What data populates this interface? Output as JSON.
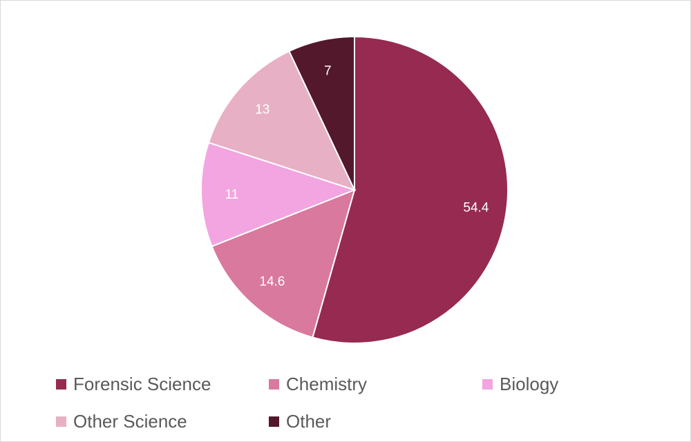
{
  "chart_data": {
    "type": "pie",
    "categories": [
      "Forensic Science",
      "Chemistry",
      "Biology",
      "Other Science",
      "Other"
    ],
    "values": [
      54.4,
      14.6,
      11,
      13,
      7
    ],
    "data_labels": [
      "54.4",
      "14.6",
      "11",
      "13",
      "7"
    ],
    "colors": [
      "#962A51",
      "#D9799D",
      "#F2A5E0",
      "#E8B0C4",
      "#53182B"
    ],
    "start_angle": "top, clockwise",
    "legend_position": "bottom"
  }
}
